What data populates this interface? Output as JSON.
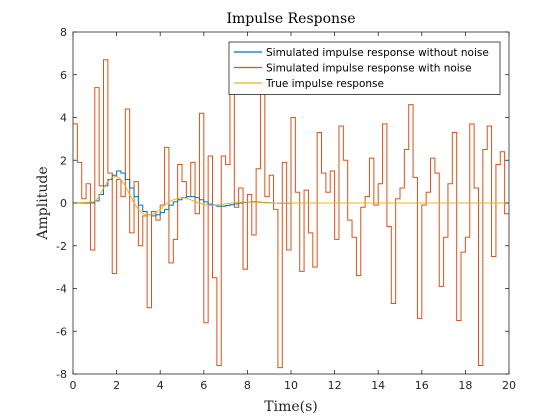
{
  "chart_data": {
    "type": "line",
    "title": "Impulse Response",
    "xlabel": "Time(s)",
    "ylabel": "Amplitude",
    "xlim": [
      0,
      20
    ],
    "ylim": [
      -8,
      8
    ],
    "grid": false,
    "legend_position": "top-right",
    "xticks": [
      0,
      2,
      4,
      6,
      8,
      10,
      12,
      14,
      16,
      18,
      20
    ],
    "yticks": [
      -8,
      -6,
      -4,
      -2,
      0,
      2,
      4,
      6,
      8
    ],
    "x_step": 0.2,
    "series": [
      {
        "name": "Simulated impulse response without noise",
        "color": "#0072BD",
        "style": "stairs",
        "values": [
          0,
          0,
          0,
          0,
          0,
          0.1,
          0.4,
          0.8,
          1.1,
          1.3,
          1.5,
          1.4,
          1.1,
          0.7,
          0.3,
          -0.1,
          -0.4,
          -0.55,
          -0.6,
          -0.55,
          -0.45,
          -0.3,
          -0.1,
          0.05,
          0.15,
          0.25,
          0.3,
          0.3,
          0.25,
          0.15,
          0.05,
          -0.05,
          -0.1,
          -0.15,
          -0.15,
          -0.12,
          -0.08,
          -0.04,
          0,
          0.02,
          0.04,
          0.05,
          0.04,
          0.03,
          0.02,
          0.01,
          0,
          -0.01,
          -0.01,
          -0.01,
          0,
          0,
          0,
          0,
          0,
          0,
          0,
          0,
          0,
          0,
          0,
          0,
          0,
          0,
          0,
          0,
          0,
          0,
          0,
          0,
          0,
          0,
          0,
          0,
          0,
          0,
          0,
          0,
          0,
          0,
          0,
          0,
          0,
          0,
          0,
          0,
          0,
          0,
          0,
          0,
          0,
          0,
          0,
          0,
          0,
          0,
          0,
          0,
          0,
          0
        ]
      },
      {
        "name": "Simulated impulse response with noise",
        "color": "#D95319",
        "style": "stairs",
        "values": [
          3.7,
          1.9,
          0.2,
          0.9,
          -2.2,
          5.4,
          0.8,
          6.7,
          1.4,
          -3.3,
          1.1,
          0.3,
          4.4,
          -1.4,
          1.0,
          -2.0,
          -0.6,
          -4.9,
          -0.4,
          -0.8,
          -0.1,
          2.6,
          -2.8,
          -1.7,
          1.8,
          1.0,
          0.3,
          1.9,
          -0.5,
          4.2,
          -5.6,
          2.2,
          -3.5,
          -7.6,
          2.2,
          1.8,
          6.5,
          -0.2,
          0.7,
          -3.1,
          0.4,
          -1.5,
          1.6,
          5.1,
          0.3,
          1.3,
          -0.3,
          -7.7,
          1.9,
          -2.2,
          4.0,
          0.5,
          -3.2,
          0.6,
          -1.4,
          -3.0,
          3.3,
          1.4,
          0.5,
          1.5,
          -1.7,
          3.6,
          2.0,
          -0.8,
          -1.6,
          -3.4,
          -0.2,
          0.3,
          2.1,
          -0.1,
          0.9,
          3.7,
          -1.1,
          -4.7,
          0.2,
          0.7,
          2.5,
          4.6,
          1.2,
          -5.4,
          -0.1,
          0.5,
          2.1,
          1.4,
          -3.9,
          -1.6,
          0.9,
          3.3,
          -5.5,
          -2.3,
          -1.6,
          3.7,
          0.7,
          -7.6,
          2.5,
          3.6,
          -2.5,
          1.8,
          2.4,
          -0.5
        ]
      },
      {
        "name": "True impulse response",
        "color": "#EDB120",
        "style": "line",
        "x": [
          0,
          1.0,
          1.2,
          1.4,
          1.6,
          1.8,
          2.0,
          2.2,
          2.4,
          2.6,
          2.8,
          3.0,
          3.2,
          3.4,
          3.6,
          3.8,
          4.0,
          4.2,
          4.4,
          4.6,
          4.8,
          5.0,
          5.2,
          5.4,
          5.6,
          5.8,
          6.0,
          6.2,
          6.4,
          6.6,
          6.8,
          7.0,
          7.2,
          7.4,
          7.6,
          7.8,
          8.0,
          8.4,
          8.8,
          9.2,
          9.6,
          10.0,
          20.0
        ],
        "values": [
          0,
          0.05,
          0.3,
          0.7,
          1.0,
          1.2,
          1.25,
          1.1,
          0.8,
          0.4,
          0.0,
          -0.3,
          -0.5,
          -0.55,
          -0.55,
          -0.45,
          -0.3,
          -0.1,
          0.05,
          0.15,
          0.22,
          0.25,
          0.22,
          0.15,
          0.07,
          0.0,
          -0.06,
          -0.1,
          -0.12,
          -0.1,
          -0.07,
          -0.04,
          -0.01,
          0.01,
          0.03,
          0.04,
          0.04,
          0.03,
          0.01,
          0.0,
          -0.01,
          0.0,
          0.0
        ]
      }
    ]
  }
}
